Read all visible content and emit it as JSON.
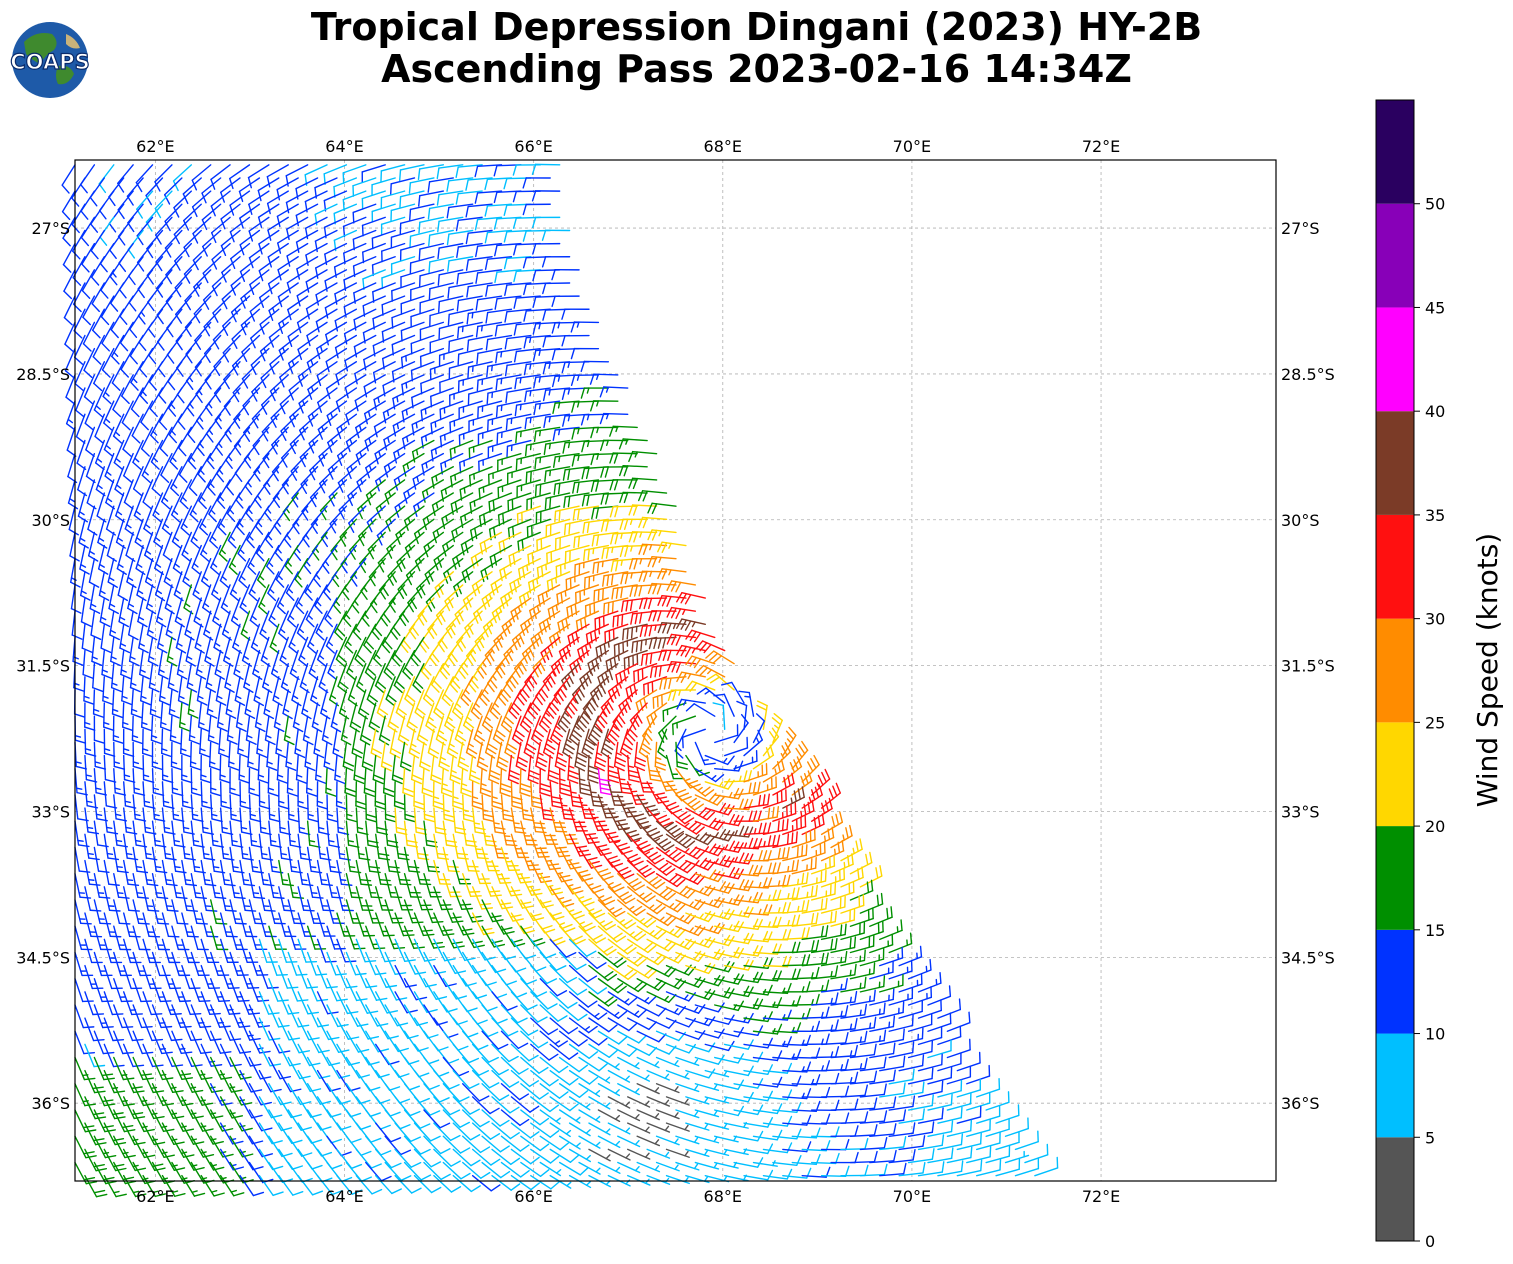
{
  "title": {
    "line1": "Tropical Depression Dingani (2023) HY-2B",
    "line2": "Ascending Pass 2023-02-16 14:34Z"
  },
  "logo": {
    "text": "COAPS",
    "icon": "globe-logo-icon"
  },
  "chart_data": {
    "type": "wind-barb-map",
    "title": "Tropical Depression Dingani (2023) HY-2B Ascending Pass 2023-02-16 14:34Z",
    "xlim": [
      61.15,
      73.85
    ],
    "ylim": [
      -36.8,
      -26.3
    ],
    "lon_ticks": [
      62,
      64,
      66,
      68,
      70,
      72
    ],
    "lon_tick_labels": [
      "62°E",
      "64°E",
      "66°E",
      "68°E",
      "70°E",
      "72°E"
    ],
    "lat_ticks": [
      -27,
      -28.5,
      -30,
      -31.5,
      -33,
      -34.5,
      -36
    ],
    "lat_tick_labels": [
      "27°S",
      "28.5°S",
      "30°S",
      "31.5°S",
      "33°S",
      "34.5°S",
      "36°S"
    ],
    "grid": true,
    "swath_polygon_lon_lat": [
      [
        61.15,
        -26.3
      ],
      [
        66.3,
        -26.3
      ],
      [
        66.4,
        -27.2
      ],
      [
        66.8,
        -28.2
      ],
      [
        67.4,
        -29.5
      ],
      [
        68.0,
        -31.3
      ],
      [
        68.8,
        -32.5
      ],
      [
        69.6,
        -34.0
      ],
      [
        70.4,
        -35.3
      ],
      [
        71.2,
        -36.4
      ],
      [
        71.4,
        -36.8
      ],
      [
        61.15,
        -36.8
      ]
    ],
    "cyclone_center": {
      "lon": 67.85,
      "lat": -32.2
    },
    "low_center": {
      "lon": 67.1,
      "lat": -36.1,
      "symbol": "calm-circle"
    },
    "colorbar": {
      "label": "Wind Speed (knots)",
      "ticks": [
        0,
        5,
        10,
        15,
        20,
        25,
        30,
        35,
        40,
        45,
        50
      ],
      "bins": [
        {
          "min": 0,
          "max": 5,
          "color": "#555555"
        },
        {
          "min": 5,
          "max": 10,
          "color": "#00bfff"
        },
        {
          "min": 10,
          "max": 15,
          "color": "#0033ff"
        },
        {
          "min": 15,
          "max": 20,
          "color": "#008f00"
        },
        {
          "min": 20,
          "max": 25,
          "color": "#ffd700"
        },
        {
          "min": 25,
          "max": 30,
          "color": "#ff8c00"
        },
        {
          "min": 30,
          "max": 35,
          "color": "#ff1010"
        },
        {
          "min": 35,
          "max": 40,
          "color": "#7b3b27"
        },
        {
          "min": 40,
          "max": 45,
          "color": "#ff00ff"
        },
        {
          "min": 45,
          "max": 50,
          "color": "#8800b8"
        },
        {
          "min": 50,
          "max": 55,
          "color": "#2a0060"
        }
      ]
    }
  }
}
